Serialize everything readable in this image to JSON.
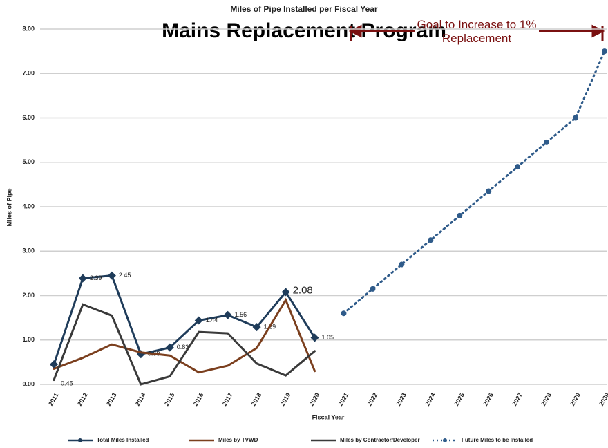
{
  "chart_data": {
    "type": "line",
    "title": "Miles of Pipe Installed per Fiscal Year",
    "overlay_title": "Mains Replacement Program",
    "annotation": "Goal to Increase to 1% Replacement",
    "x_label": "Fiscal Year",
    "y_label": "Miles of Pipe",
    "categories": [
      "2011",
      "2012",
      "2013",
      "2014",
      "2015",
      "2016",
      "2017",
      "2018",
      "2019",
      "2020",
      "2021",
      "2022",
      "2023",
      "2024",
      "2025",
      "2026",
      "2027",
      "2028",
      "2029",
      "2030"
    ],
    "series": [
      {
        "name": "Total Miles Installed",
        "color": "#1f3c5a",
        "marker": "diamond",
        "values": [
          0.45,
          2.39,
          2.45,
          0.68,
          0.83,
          1.44,
          1.56,
          1.29,
          2.08,
          1.05,
          null,
          null,
          null,
          null,
          null,
          null,
          null,
          null,
          null,
          null
        ]
      },
      {
        "name": "Miles by TVWD",
        "color": "#7b3f1e",
        "values": [
          0.35,
          0.6,
          0.9,
          0.72,
          0.65,
          0.27,
          0.42,
          0.82,
          1.9,
          0.3,
          null,
          null,
          null,
          null,
          null,
          null,
          null,
          null,
          null,
          null
        ]
      },
      {
        "name": "Miles by Contractor/Developer",
        "color": "#3a3a3a",
        "values": [
          0.1,
          1.8,
          1.55,
          0.0,
          0.18,
          1.18,
          1.15,
          0.47,
          0.2,
          0.75,
          null,
          null,
          null,
          null,
          null,
          null,
          null,
          null,
          null,
          null
        ]
      },
      {
        "name": "Future Miles to be Installed",
        "color": "#2f5b8a",
        "marker": "circle",
        "dash": true,
        "values": [
          null,
          null,
          null,
          null,
          null,
          null,
          null,
          null,
          null,
          null,
          1.6,
          2.15,
          2.7,
          3.25,
          3.8,
          4.35,
          4.9,
          5.45,
          6.0,
          7.5
        ]
      }
    ],
    "ylim": [
      0,
      8
    ],
    "yticks": [
      {
        "value": 0,
        "label": "0.00"
      },
      {
        "value": 1,
        "label": "1.00"
      },
      {
        "value": 2,
        "label": "2.00"
      },
      {
        "value": 3,
        "label": "3.00"
      },
      {
        "value": 4,
        "label": "4.00"
      },
      {
        "value": 5,
        "label": "5.00"
      },
      {
        "value": 6,
        "label": "6.00"
      },
      {
        "value": 7,
        "label": "7.00"
      },
      {
        "value": 8,
        "label": "8.00"
      }
    ],
    "grid": true,
    "legend": "bottom"
  }
}
